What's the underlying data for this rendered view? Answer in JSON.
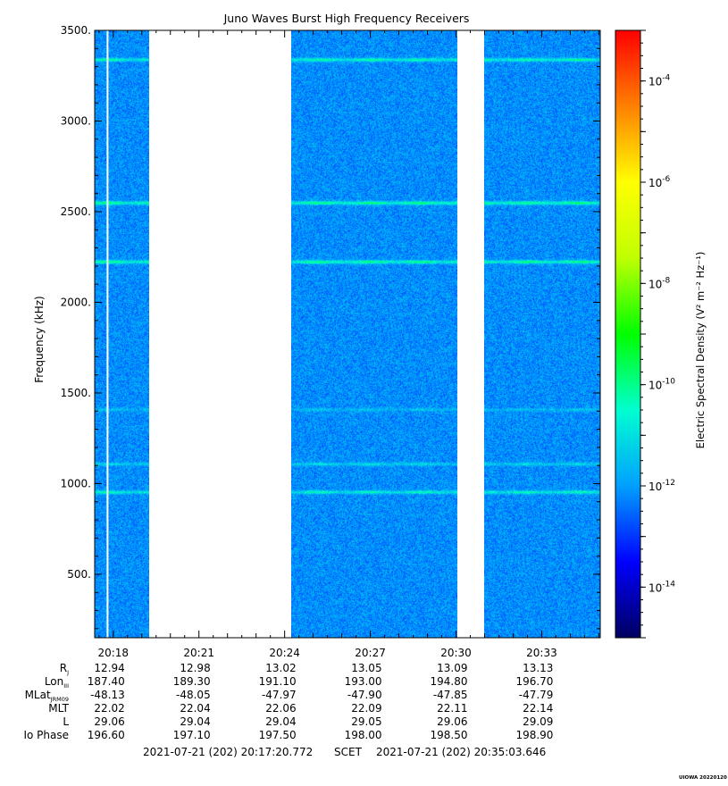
{
  "chart_data": {
    "type": "heatmap",
    "title": "Juno Waves Burst High Frequency Receivers",
    "ylabel": "Frequency (kHz)",
    "ylim": [
      150,
      3500
    ],
    "xlim_minutes": [
      1097.35,
      1115.05
    ],
    "y_ticks": [
      {
        "value": 500,
        "label": "500."
      },
      {
        "value": 1000,
        "label": "1000."
      },
      {
        "value": 1500,
        "label": "1500."
      },
      {
        "value": 2000,
        "label": "2000."
      },
      {
        "value": 2500,
        "label": "2500."
      },
      {
        "value": 3000,
        "label": "3000."
      },
      {
        "value": 3500,
        "label": "3500."
      }
    ],
    "x_ticks": [
      {
        "minute": 1098,
        "label": "20:18"
      },
      {
        "minute": 1101,
        "label": "20:21"
      },
      {
        "minute": 1104,
        "label": "20:24"
      },
      {
        "minute": 1107,
        "label": "20:27"
      },
      {
        "minute": 1110,
        "label": "20:30"
      },
      {
        "minute": 1113,
        "label": "20:33"
      }
    ],
    "data_segments_minutes": [
      [
        1097.35,
        1099.25
      ],
      [
        1104.22,
        1110.05
      ],
      [
        1111.0,
        1115.05
      ]
    ],
    "gap_line_minute": 1097.8,
    "emission_lines_khz": [
      {
        "freq": 3340,
        "strength": 0.85
      },
      {
        "freq": 2550,
        "strength": 1.0
      },
      {
        "freq": 2225,
        "strength": 0.95
      },
      {
        "freq": 1410,
        "strength": 0.3
      },
      {
        "freq": 1110,
        "strength": 0.45
      },
      {
        "freq": 955,
        "strength": 0.75
      }
    ],
    "background_level_exponent": -12,
    "colorbar": {
      "label": "Electric Spectral Density (V² m⁻² Hz⁻¹)",
      "range_exponent": [
        -15,
        -3
      ],
      "scale": "log",
      "ticks": [
        {
          "exponent": -14,
          "base": "10",
          "sup": "-14"
        },
        {
          "exponent": -12,
          "base": "10",
          "sup": "-12"
        },
        {
          "exponent": -10,
          "base": "10",
          "sup": "-10"
        },
        {
          "exponent": -8,
          "base": "10",
          "sup": "-8"
        },
        {
          "exponent": -6,
          "base": "10",
          "sup": "-6"
        },
        {
          "exponent": -4,
          "base": "10",
          "sup": "-4"
        }
      ],
      "colors": [
        "#000060",
        "#0000ff",
        "#00a0ff",
        "#00ffd0",
        "#00ff00",
        "#c0ff00",
        "#ffff00",
        "#ff8000",
        "#ff0000"
      ]
    },
    "ephemeris": {
      "labels": [
        {
          "text": "R",
          "sub": "J"
        },
        {
          "text": "Lon",
          "sub": "III"
        },
        {
          "text": "MLat",
          "sub": "JRM09"
        },
        {
          "text": "MLT",
          "sub": ""
        },
        {
          "text": "L",
          "sub": ""
        },
        {
          "text": "Io Phase",
          "sub": ""
        }
      ],
      "rows": [
        [
          "12.94",
          "12.98",
          "13.02",
          "13.05",
          "13.09",
          "13.13"
        ],
        [
          "187.40",
          "189.30",
          "191.10",
          "193.00",
          "194.80",
          "196.70"
        ],
        [
          "-48.13",
          "-48.05",
          "-47.97",
          "-47.90",
          "-47.85",
          "-47.79"
        ],
        [
          "22.02",
          "22.04",
          "22.06",
          "22.09",
          "22.11",
          "22.14"
        ],
        [
          "29.06",
          "29.04",
          "29.04",
          "29.05",
          "29.06",
          "29.09"
        ],
        [
          "196.60",
          "197.10",
          "197.50",
          "198.00",
          "198.50",
          "198.90"
        ]
      ]
    },
    "footer": {
      "start": "2021-07-21 (202) 20:17:20.772",
      "scet": "SCET",
      "end": "2021-07-21 (202) 20:35:03.646"
    },
    "credit": "UIOWA 20220120"
  }
}
